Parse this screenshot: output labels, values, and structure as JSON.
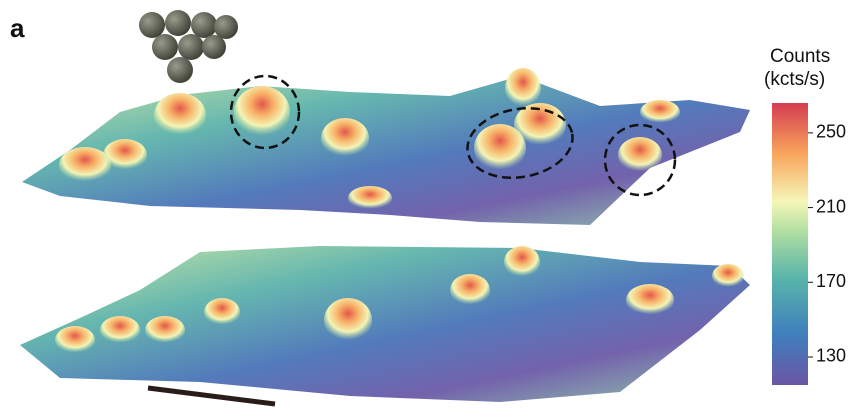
{
  "panel_label": "a",
  "colorbar": {
    "label_lines": [
      "Counts",
      "(kcts/s)"
    ],
    "lim": [
      115,
      266
    ],
    "ticks": [
      130,
      170,
      210,
      250
    ]
  }
}
